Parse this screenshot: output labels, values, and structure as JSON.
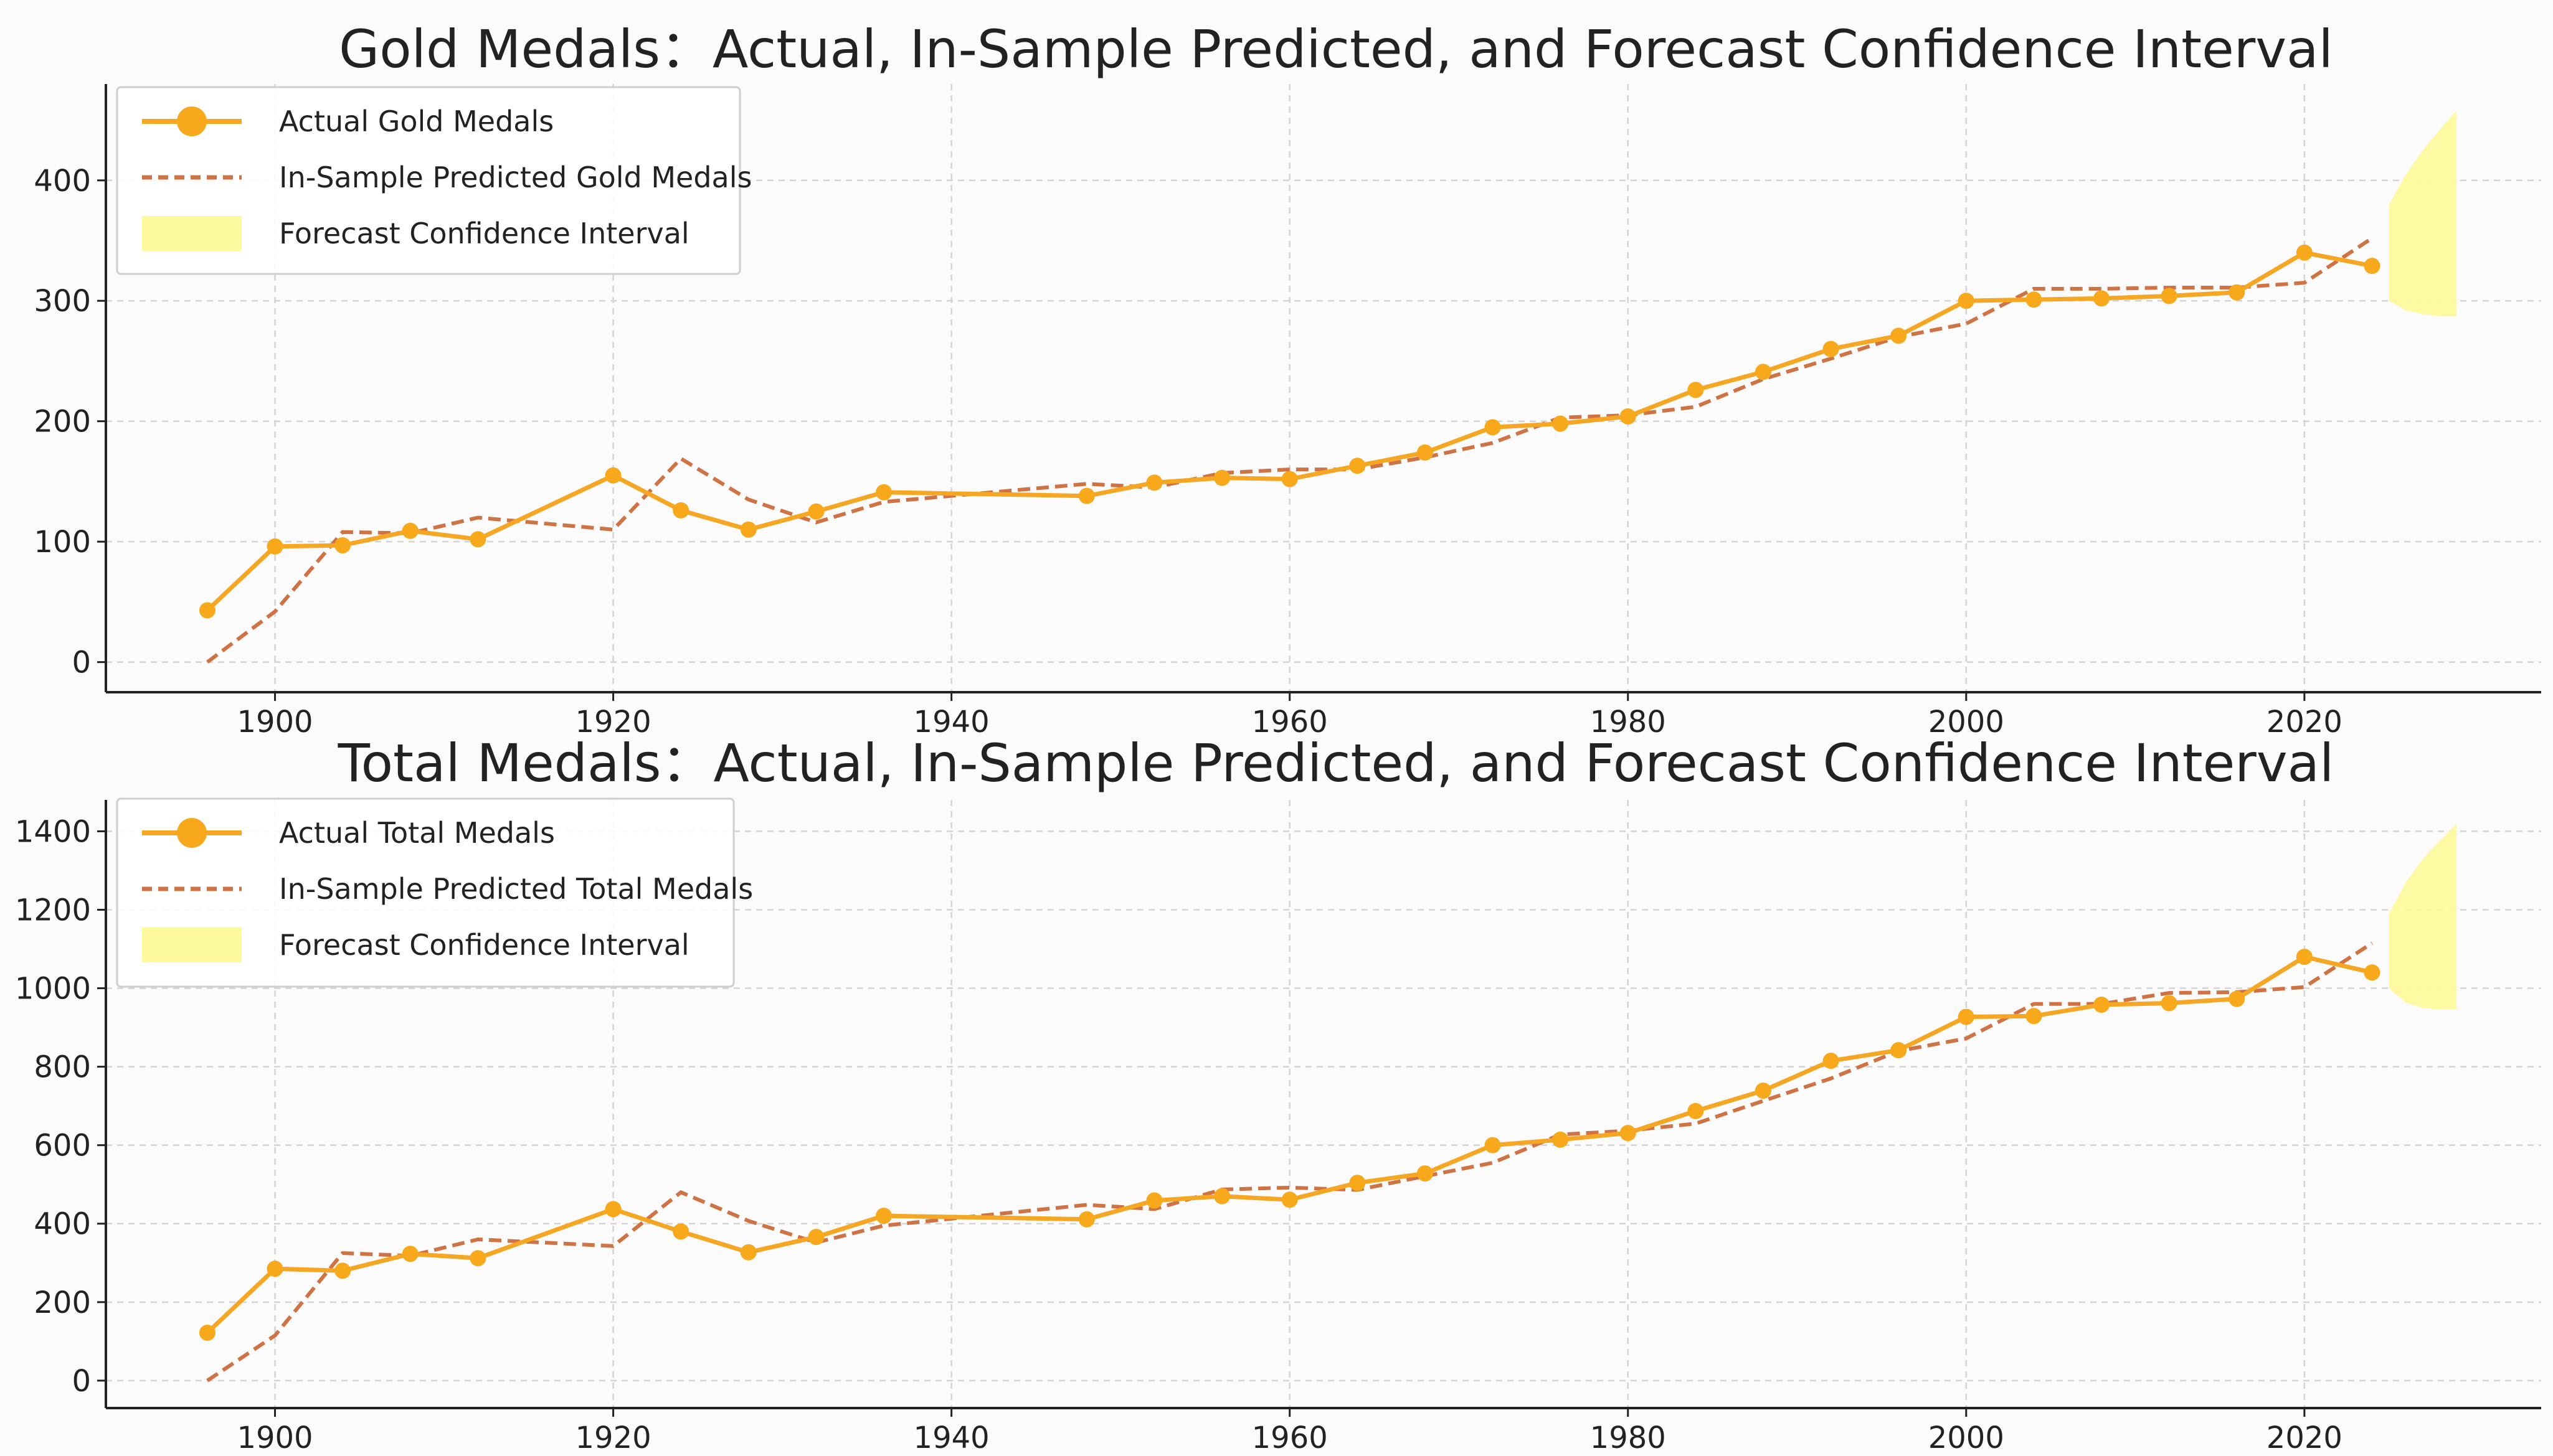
{
  "colors": {
    "actual": "#f5a623",
    "actual_marker": "#f7a81b",
    "predicted": "#cf7344",
    "confidence": "#fdfa9e",
    "background": "#fbfbfb"
  },
  "chart_data": [
    {
      "type": "line",
      "title": "Gold Medals：Actual, In-Sample Predicted, and Forecast Confidence Interval",
      "xlabel": "",
      "ylabel": "",
      "xlim": [
        1890,
        2034
      ],
      "ylim": [
        -25,
        480
      ],
      "x_ticks": [
        1900,
        1920,
        1940,
        1960,
        1980,
        2000,
        2020
      ],
      "y_ticks": [
        0,
        100,
        200,
        300,
        400
      ],
      "legend_position": "upper left",
      "legend": {
        "actual": "Actual Gold Medals",
        "predicted": "In-Sample Predicted Gold Medals",
        "confidence": "Forecast Confidence Interval"
      },
      "series": [
        {
          "name": "Actual Gold Medals",
          "style": "solid-markers",
          "x": [
            1896,
            1900,
            1904,
            1908,
            1912,
            1920,
            1924,
            1928,
            1932,
            1936,
            1948,
            1952,
            1956,
            1960,
            1964,
            1968,
            1972,
            1976,
            1980,
            1984,
            1988,
            1992,
            1996,
            2000,
            2004,
            2008,
            2012,
            2016,
            2020,
            2024
          ],
          "values": [
            43,
            96,
            97,
            109,
            102,
            155,
            126,
            110,
            125,
            141,
            138,
            149,
            153,
            152,
            163,
            174,
            195,
            198,
            204,
            226,
            241,
            260,
            271,
            300,
            301,
            302,
            304,
            307,
            340,
            329
          ]
        },
        {
          "name": "In-Sample Predicted Gold Medals",
          "style": "dashed",
          "x": [
            1896,
            1900,
            1904,
            1908,
            1912,
            1920,
            1924,
            1928,
            1932,
            1936,
            1948,
            1952,
            1956,
            1960,
            1964,
            1968,
            1972,
            1976,
            1980,
            1984,
            1988,
            1992,
            1996,
            2000,
            2004,
            2008,
            2012,
            2016,
            2020,
            2024
          ],
          "values": [
            0,
            42,
            108,
            107,
            120,
            110,
            169,
            135,
            116,
            133,
            148,
            145,
            157,
            160,
            160,
            170,
            182,
            203,
            205,
            212,
            235,
            252,
            270,
            281,
            310,
            310,
            311,
            311,
            315,
            352
          ]
        }
      ],
      "confidence_interval": {
        "name": "Forecast Confidence Interval",
        "x": [
          2025,
          2026,
          2027,
          2028,
          2029
        ],
        "lower": [
          300,
          292,
          289,
          287,
          287
        ],
        "upper": [
          380,
          405,
          425,
          442,
          458
        ]
      }
    },
    {
      "type": "line",
      "title": "Total Medals：Actual, In-Sample Predicted, and Forecast Confidence Interval",
      "xlabel": "",
      "ylabel": "",
      "xlim": [
        1890,
        2034
      ],
      "ylim": [
        -70,
        1480
      ],
      "x_ticks": [
        1900,
        1920,
        1940,
        1960,
        1980,
        2000,
        2020
      ],
      "y_ticks": [
        0,
        200,
        400,
        600,
        800,
        1000,
        1200,
        1400
      ],
      "legend_position": "upper left",
      "legend": {
        "actual": "Actual Total Medals",
        "predicted": "In-Sample Predicted Total Medals",
        "confidence": "Forecast Confidence Interval"
      },
      "series": [
        {
          "name": "Actual Total Medals",
          "style": "solid-markers",
          "x": [
            1896,
            1900,
            1904,
            1908,
            1912,
            1920,
            1924,
            1928,
            1932,
            1936,
            1948,
            1952,
            1956,
            1960,
            1964,
            1968,
            1972,
            1976,
            1980,
            1984,
            1988,
            1992,
            1996,
            2000,
            2004,
            2008,
            2012,
            2016,
            2020,
            2024
          ],
          "values": [
            122,
            285,
            280,
            323,
            312,
            437,
            380,
            327,
            366,
            420,
            411,
            459,
            470,
            461,
            504,
            528,
            600,
            614,
            631,
            687,
            739,
            815,
            842,
            927,
            929,
            958,
            962,
            973,
            1080,
            1040
          ]
        },
        {
          "name": "In-Sample Predicted Total Medals",
          "style": "dashed",
          "x": [
            1896,
            1900,
            1904,
            1908,
            1912,
            1920,
            1924,
            1928,
            1932,
            1936,
            1948,
            1952,
            1956,
            1960,
            1964,
            1968,
            1972,
            1976,
            1980,
            1984,
            1988,
            1992,
            1996,
            2000,
            2004,
            2008,
            2012,
            2016,
            2020,
            2024
          ],
          "values": [
            0,
            115,
            325,
            318,
            360,
            343,
            480,
            407,
            352,
            395,
            448,
            437,
            487,
            492,
            486,
            521,
            555,
            627,
            637,
            655,
            713,
            770,
            840,
            872,
            960,
            960,
            988,
            990,
            1003,
            1115
          ]
        }
      ],
      "confidence_interval": {
        "name": "Forecast Confidence Interval",
        "x": [
          2025,
          2026,
          2027,
          2028,
          2029
        ],
        "lower": [
          1000,
          963,
          950,
          946,
          946
        ],
        "upper": [
          1190,
          1270,
          1330,
          1375,
          1420
        ]
      }
    }
  ]
}
